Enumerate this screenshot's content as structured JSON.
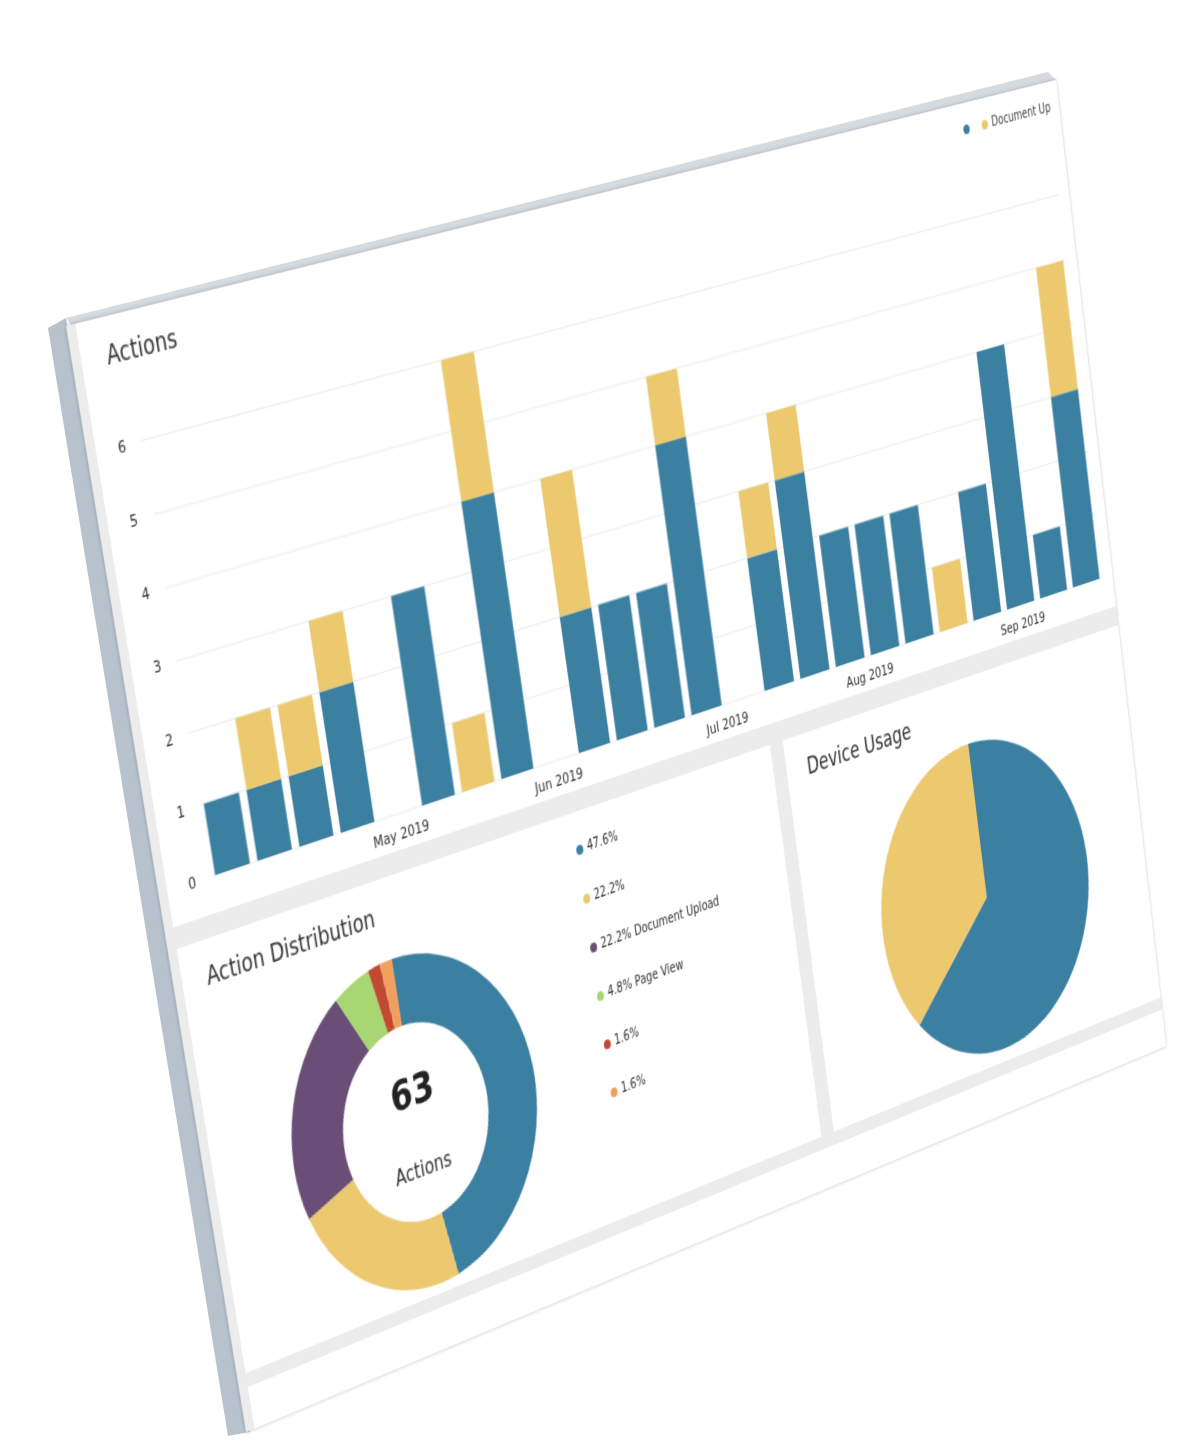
{
  "actions": {
    "title": "Actions",
    "legend": [
      {
        "label": "",
        "color": "#3b7fa1"
      },
      {
        "label": "Document Up",
        "color": "#ecc86e"
      }
    ]
  },
  "chart_data": [
    {
      "type": "bar",
      "stacked": true,
      "title": "Actions",
      "ylim": [
        0,
        6.5
      ],
      "yticks": [
        "0",
        "1",
        "2",
        "3",
        "4",
        "5",
        "6"
      ],
      "grid": true,
      "legend_position": "top-right",
      "x_tick_labels": [
        {
          "label": "May 2019",
          "slot": 4.5
        },
        {
          "label": "Jun 2019",
          "slot": 8.5
        },
        {
          "label": "Jul 2019",
          "slot": 13
        },
        {
          "label": "Aug 2019",
          "slot": 17
        },
        {
          "label": "Sep 2019",
          "slot": 21.5
        }
      ],
      "series": [
        {
          "color": "#3b7fa1",
          "values": [
            1,
            1,
            1,
            2,
            0,
            3,
            0,
            4,
            0,
            2,
            2,
            2,
            4,
            0,
            2,
            3,
            2,
            2,
            2,
            0,
            2,
            4,
            1,
            3
          ]
        },
        {
          "name": "Document Up",
          "color": "#ecc86e",
          "values": [
            0,
            1,
            1,
            1,
            0,
            0,
            1,
            2,
            0,
            2,
            0,
            0,
            1,
            0,
            1,
            1,
            0,
            0,
            0,
            1,
            0,
            0,
            0,
            2
          ]
        }
      ]
    },
    {
      "type": "pie",
      "title": "Action Distribution",
      "donut": true,
      "center_value": "63",
      "center_label": "Actions",
      "slices": [
        {
          "label": "47.6%",
          "value": 47.6,
          "color": "#3b7fa1"
        },
        {
          "label": "22.2%",
          "value": 22.2,
          "color": "#ecc86e"
        },
        {
          "label": "22.2% Document Upload",
          "value": 22.2,
          "color": "#6a4e77"
        },
        {
          "label": "4.8% Page View",
          "value": 4.8,
          "color": "#a8d672"
        },
        {
          "label": "1.6%",
          "value": 1.6,
          "color": "#c24a33"
        },
        {
          "label": "1.6%",
          "value": 1.6,
          "color": "#f0a05e"
        }
      ]
    },
    {
      "type": "pie",
      "title": "Device Usage",
      "slices": [
        {
          "value": 64,
          "color": "#3b7fa1"
        },
        {
          "value": 36,
          "color": "#ecc86e"
        }
      ]
    }
  ]
}
